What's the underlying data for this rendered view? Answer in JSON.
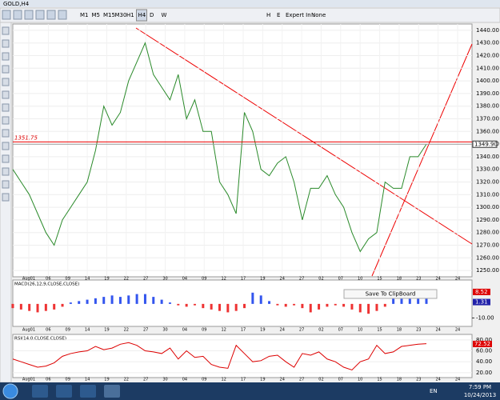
{
  "window": {
    "title": "GOLD,H4"
  },
  "toolbar": {
    "timeframes": [
      "M1",
      "M5",
      "M15",
      "M30",
      "H1",
      "H4",
      "D",
      "W"
    ],
    "tools": [
      "H",
      "E"
    ],
    "expert_label": "Expert In :",
    "expert_value": "None"
  },
  "price_panel": {
    "ylim": [
      1245,
      1445
    ],
    "yticks": [
      {
        "value": 1250,
        "label": "1250.00"
      },
      {
        "value": 1260,
        "label": "1260.00"
      },
      {
        "value": 1270,
        "label": "1270.00"
      },
      {
        "value": 1280,
        "label": "1280.00"
      },
      {
        "value": 1290,
        "label": "1290.00"
      },
      {
        "value": 1300,
        "label": "1300.00"
      },
      {
        "value": 1310,
        "label": "1310.00"
      },
      {
        "value": 1320,
        "label": "1320.00"
      },
      {
        "value": 1330,
        "label": "1330.00"
      },
      {
        "value": 1340,
        "label": "1340.00"
      },
      {
        "value": 1350,
        "label": "1350.00"
      },
      {
        "value": 1360,
        "label": "1360.00"
      },
      {
        "value": 1370,
        "label": "1370.00"
      },
      {
        "value": 1380,
        "label": "1380.00"
      },
      {
        "value": 1390,
        "label": "1390.00"
      },
      {
        "value": 1400,
        "label": "1400.00"
      },
      {
        "value": 1410,
        "label": "1410.00"
      },
      {
        "value": 1420,
        "label": "1420.00"
      },
      {
        "value": 1430,
        "label": "1430.00"
      },
      {
        "value": 1440,
        "label": "1440.00"
      }
    ],
    "dates": [
      "Aug01",
      "06",
      "09",
      "14",
      "19",
      "22",
      "27",
      "30",
      "04",
      "09",
      "12",
      "17",
      "19",
      "24",
      "27",
      "02",
      "07",
      "10",
      "15",
      "18",
      "23",
      "24",
      "24"
    ],
    "closes": [
      1330,
      1320,
      1310,
      1295,
      1280,
      1270,
      1290,
      1300,
      1310,
      1320,
      1345,
      1380,
      1365,
      1375,
      1400,
      1415,
      1430,
      1405,
      1395,
      1385,
      1405,
      1370,
      1385,
      1360,
      1360,
      1320,
      1310,
      1295,
      1375,
      1360,
      1330,
      1325,
      1335,
      1340,
      1320,
      1290,
      1315,
      1315,
      1325,
      1310,
      1300,
      1280,
      1265,
      1275,
      1280,
      1320,
      1315,
      1315,
      1340,
      1340,
      1350
    ],
    "level": {
      "value": 1351.75,
      "label": "1351.75"
    },
    "last": {
      "value": 1349.9,
      "label": "1349.90"
    }
  },
  "macd_panel": {
    "title": "MACD(26,12,9,CLOSE,CLOSE)",
    "ylim": [
      -16,
      17
    ],
    "yticks": [
      {
        "value": -10,
        "label": "-10.00"
      }
    ],
    "histogram": [
      -3,
      -4,
      -5,
      -6,
      -5,
      -4,
      -2,
      1,
      2,
      3,
      4,
      5,
      6,
      5,
      6,
      7,
      7,
      5,
      3,
      1,
      -1,
      -2,
      -1,
      -3,
      -4,
      -5,
      -6,
      -5,
      -3,
      8,
      6,
      2,
      -1,
      -2,
      -1,
      -3,
      -6,
      -4,
      -2,
      -1,
      -2,
      -4,
      -6,
      -7,
      -5,
      -2,
      4,
      5,
      4,
      6,
      7
    ],
    "main": {
      "value": 8.52,
      "label": "8.52"
    },
    "signal": {
      "value": 1.31,
      "label": "1.31"
    },
    "button": "Save To ClipBoard"
  },
  "rsi_panel": {
    "title": "RSI(14,0,CLOSE,CLOSE)",
    "ylim": [
      11,
      90
    ],
    "yticks": [
      {
        "value": 80,
        "label": "80.00"
      },
      {
        "value": 60,
        "label": "60.00"
      },
      {
        "value": 40,
        "label": "40.00"
      },
      {
        "value": 20,
        "label": "20.00"
      }
    ],
    "values": [
      45,
      40,
      35,
      30,
      32,
      38,
      50,
      55,
      58,
      60,
      68,
      62,
      65,
      72,
      75,
      70,
      60,
      58,
      55,
      65,
      45,
      60,
      48,
      50,
      35,
      30,
      28,
      70,
      55,
      40,
      42,
      50,
      52,
      40,
      30,
      55,
      52,
      58,
      45,
      40,
      30,
      25,
      40,
      45,
      70,
      55,
      58,
      68,
      70,
      72,
      73
    ],
    "last": {
      "value": 72.52,
      "label": "72.52"
    }
  },
  "taskbar": {
    "language": "EN",
    "time": "7:59 PM",
    "date": "10/24/2013"
  }
}
